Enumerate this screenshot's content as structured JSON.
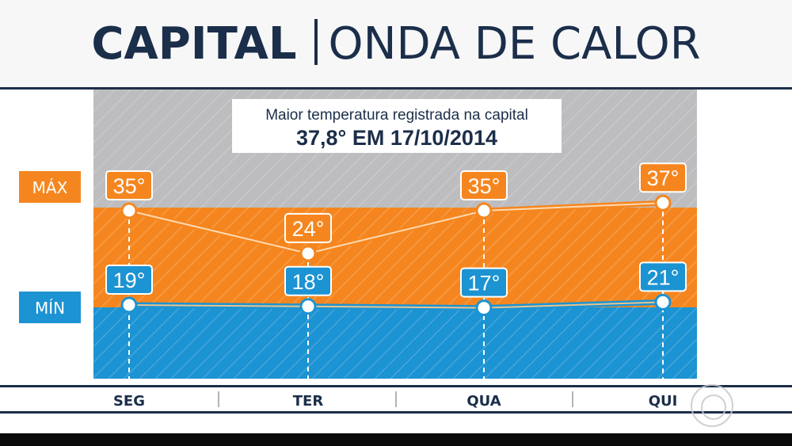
{
  "header": {
    "title_bold": "CAPITAL",
    "title_light": "ONDA DE CALOR"
  },
  "record_box": {
    "caption": "Maior temperatura registrada na capital",
    "value": "37,8° EM 17/10/2014"
  },
  "colors": {
    "max": "#f5861f",
    "min": "#1c93d2",
    "navy": "#1b2e4a",
    "background_panel": "#bfbfc1"
  },
  "chart_data": {
    "type": "line",
    "categories": [
      "SEG",
      "TER",
      "QUA",
      "QUI"
    ],
    "series": [
      {
        "name": "MÁX",
        "values": [
          35,
          24,
          35,
          37
        ],
        "labels": [
          "35°",
          "24°",
          "35°",
          "37°"
        ]
      },
      {
        "name": "MÍN",
        "values": [
          19,
          18,
          17,
          21
        ],
        "labels": [
          "19°",
          "18°",
          "17°",
          "21°"
        ]
      }
    ],
    "title": "CAPITAL | ONDA DE CALOR",
    "annotation": "Maior temperatura registrada na capital 37,8° EM 17/10/2014"
  },
  "broadcaster_logo": "globe-logo-icon"
}
